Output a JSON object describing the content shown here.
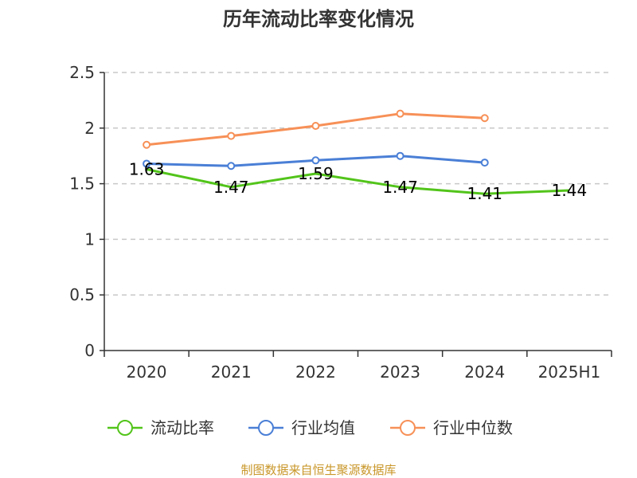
{
  "chart_data": {
    "type": "line",
    "title": "历年流动比率变化情况",
    "categories": [
      "2020",
      "2021",
      "2022",
      "2023",
      "2024",
      "2025H1"
    ],
    "ylim": [
      0,
      2.5
    ],
    "yticks": [
      "0",
      "0.5",
      "1",
      "1.5",
      "2",
      "2.5"
    ],
    "grid": true,
    "legend_position": "bottom",
    "series": [
      {
        "name": "流动比率",
        "color": "#52c41a",
        "values": [
          1.63,
          1.47,
          1.59,
          1.47,
          1.41,
          1.44
        ],
        "labels": [
          "1.63",
          "1.47",
          "1.59",
          "1.47",
          "1.41",
          "1.44"
        ]
      },
      {
        "name": "行业均值",
        "color": "#4a7fd6",
        "values": [
          1.68,
          1.66,
          1.71,
          1.75,
          1.69,
          null
        ]
      },
      {
        "name": "行业中位数",
        "color": "#f79057",
        "values": [
          1.85,
          1.93,
          2.02,
          2.13,
          2.09,
          null
        ]
      }
    ],
    "source": "制图数据来自恒生聚源数据库"
  }
}
